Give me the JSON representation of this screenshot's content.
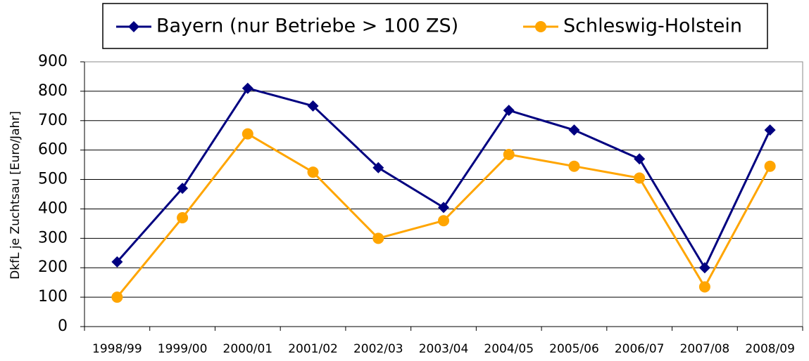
{
  "chart_data": {
    "type": "line",
    "y_label": "DkfL je Zuchtsau [Euro/Jahr]",
    "categories": [
      "1998/99",
      "1999/00",
      "2000/01",
      "2001/02",
      "2002/03",
      "2003/04",
      "2004/05",
      "2005/06",
      "2006/07",
      "2007/08",
      "2008/09"
    ],
    "series": [
      {
        "name": "Bayern (nur Betriebe > 100 ZS)",
        "color": "#000080",
        "marker": "diamond",
        "values": [
          220,
          470,
          810,
          750,
          540,
          405,
          735,
          668,
          570,
          200,
          668
        ]
      },
      {
        "name": "Schleswig-Holstein",
        "color": "#ffa500",
        "marker": "circle",
        "values": [
          100,
          370,
          655,
          525,
          300,
          360,
          585,
          545,
          505,
          135,
          545
        ]
      }
    ],
    "ylim": [
      0,
      900
    ],
    "yticks": [
      0,
      100,
      200,
      300,
      400,
      500,
      600,
      700,
      800,
      900
    ],
    "grid": true,
    "legend": "top"
  }
}
